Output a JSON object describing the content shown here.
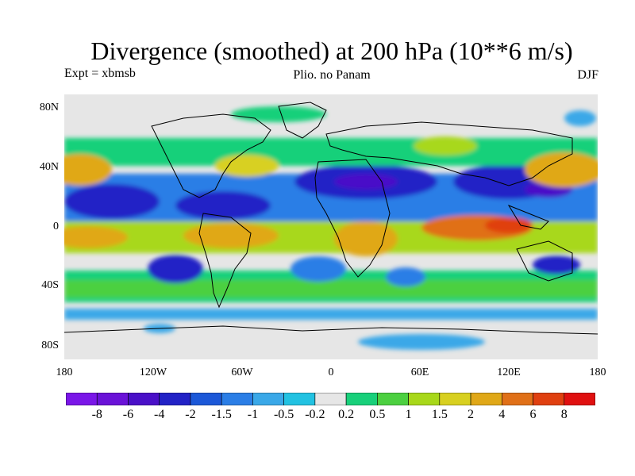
{
  "title": "Divergence (smoothed) at 200 hPa (10**6 m/s)",
  "subtitle_left": "Expt = xbmsb",
  "subtitle_center": "Plio. no Panam",
  "subtitle_right": "DJF",
  "lat_ticks": [
    "80N",
    "40N",
    "0",
    "40S",
    "80S"
  ],
  "lon_ticks": [
    "180",
    "120W",
    "60W",
    "0",
    "60E",
    "120E",
    "180"
  ],
  "colorbar": {
    "labels": [
      "-8",
      "-6",
      "-4",
      "-2",
      "-1.5",
      "-1",
      "-0.5",
      "-0.2",
      "0.2",
      "0.5",
      "1",
      "1.5",
      "2",
      "4",
      "6",
      "8"
    ],
    "colors": [
      "#7a16e8",
      "#6a12d8",
      "#4a10c8",
      "#2222c6",
      "#1c58d8",
      "#2b7ee6",
      "#3aa8e8",
      "#22c2e2",
      "#e6e6e6",
      "#18d07a",
      "#4cd040",
      "#a8d81a",
      "#d8d020",
      "#e0a818",
      "#e07018",
      "#e04010",
      "#e01010"
    ]
  },
  "map": {
    "background_color": "#e6e6e6",
    "coastline_color": "#000000"
  }
}
